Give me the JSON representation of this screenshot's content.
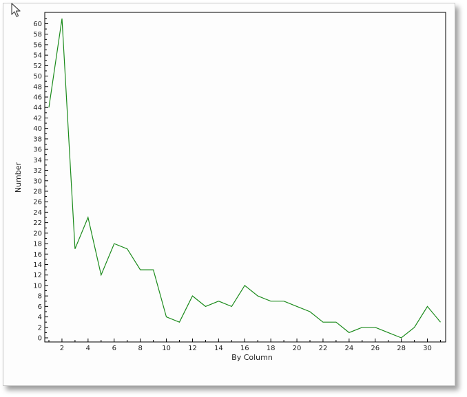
{
  "chart_data": {
    "type": "line",
    "title": "",
    "xlabel": "By Column",
    "ylabel": "Number",
    "x": [
      1,
      2,
      3,
      4,
      5,
      6,
      7,
      8,
      9,
      10,
      11,
      12,
      13,
      14,
      15,
      16,
      17,
      18,
      19,
      20,
      21,
      22,
      23,
      24,
      25,
      26,
      27,
      28,
      29,
      30,
      31
    ],
    "series": [
      {
        "values": [
          44,
          61,
          17,
          23,
          12,
          18,
          17,
          13,
          13,
          4,
          3,
          8,
          6,
          7,
          6,
          10,
          8,
          7,
          7,
          6,
          5,
          3,
          3,
          1,
          2,
          2,
          1,
          0,
          2,
          6,
          3
        ],
        "color": "#1a8a1a"
      }
    ],
    "xlim": [
      0.5,
      31
    ],
    "ylim": [
      0,
      61.5
    ],
    "x_tick_labels": [
      "2",
      "4",
      "6",
      "8",
      "10",
      "12",
      "14",
      "16",
      "18",
      "20",
      "22",
      "24",
      "26",
      "28",
      "30"
    ],
    "y_tick_labels": [
      "0",
      "2",
      "4",
      "6",
      "8",
      "10",
      "12",
      "14",
      "16",
      "18",
      "20",
      "22",
      "24",
      "26",
      "28",
      "30",
      "32",
      "34",
      "36",
      "38",
      "40",
      "42",
      "44",
      "46",
      "48",
      "50",
      "52",
      "54",
      "56",
      "58",
      "60"
    ],
    "grid": false,
    "legend": "none"
  },
  "colors": {
    "background": "#fdfdfd",
    "plot_border": "#000000",
    "line": "#1a8a1a"
  },
  "icons": {
    "cursor": "mouse-pointer-icon"
  }
}
